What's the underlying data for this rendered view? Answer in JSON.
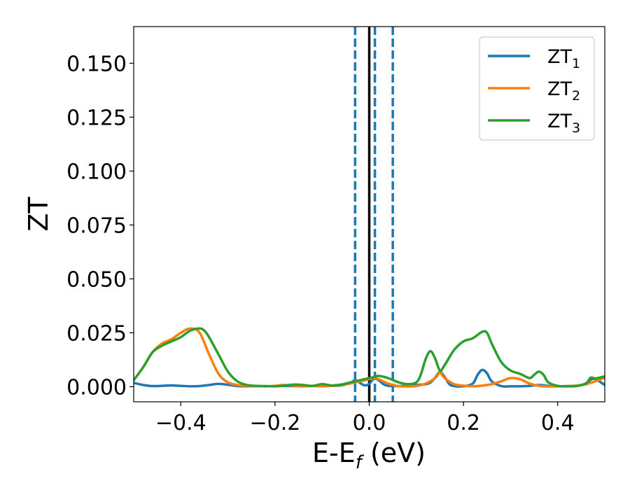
{
  "chart_data": {
    "type": "line",
    "xlabel_main": "E-E",
    "xlabel_sub": "f",
    "xlabel_tail": " (eV)",
    "ylabel": "ZT",
    "xlim": [
      -0.5,
      0.5
    ],
    "ylim": [
      -0.007,
      0.167
    ],
    "xticks": [
      -0.4,
      -0.2,
      0.0,
      0.2,
      0.4
    ],
    "xtick_labels": [
      "−0.4",
      "−0.2",
      "0.0",
      "0.2",
      "0.4"
    ],
    "yticks": [
      0.0,
      0.025,
      0.05,
      0.075,
      0.1,
      0.125,
      0.15
    ],
    "ytick_labels": [
      "0.000",
      "0.025",
      "0.050",
      "0.075",
      "0.100",
      "0.125",
      "0.150"
    ],
    "grid": false,
    "legend_position": "top-right",
    "fermi_line_x": 0.0,
    "fermi_line_color": "#000000",
    "dashed_lines_x": [
      -0.03,
      0.012,
      0.05
    ],
    "dashed_line_color": "#1f77b4",
    "series": [
      {
        "name": "ZT",
        "sub": "1",
        "color": "#1f77b4",
        "x": [
          -0.5,
          -0.48,
          -0.46,
          -0.44,
          -0.42,
          -0.4,
          -0.38,
          -0.36,
          -0.34,
          -0.32,
          -0.3,
          -0.28,
          -0.26,
          -0.24,
          -0.22,
          -0.2,
          -0.18,
          -0.16,
          -0.14,
          -0.12,
          -0.1,
          -0.08,
          -0.06,
          -0.04,
          -0.03,
          -0.02,
          -0.01,
          0.0,
          0.01,
          0.02,
          0.03,
          0.04,
          0.05,
          0.06,
          0.08,
          0.1,
          0.12,
          0.13,
          0.14,
          0.15,
          0.16,
          0.17,
          0.18,
          0.2,
          0.22,
          0.23,
          0.24,
          0.25,
          0.26,
          0.28,
          0.3,
          0.32,
          0.34,
          0.36,
          0.38,
          0.4,
          0.42,
          0.44,
          0.46,
          0.47,
          0.48,
          0.5
        ],
        "y": [
          0.0018,
          0.0008,
          0.0003,
          0.0004,
          0.0006,
          0.0004,
          0.0002,
          0.0003,
          0.0008,
          0.0013,
          0.0009,
          0.0003,
          0.0002,
          0.0003,
          0.0002,
          0.0003,
          0.0004,
          0.0003,
          0.0002,
          0.0004,
          0.0006,
          0.0005,
          0.0006,
          0.0018,
          0.003,
          0.0018,
          0.0006,
          0.0013,
          0.0038,
          0.003,
          0.0012,
          0.0004,
          0.0003,
          0.0003,
          0.0004,
          0.0008,
          0.0012,
          0.002,
          0.0042,
          0.0068,
          0.0045,
          0.0012,
          0.0003,
          0.0002,
          0.0015,
          0.0055,
          0.0078,
          0.0062,
          0.0025,
          0.0003,
          0.0002,
          0.0002,
          0.0004,
          0.0008,
          0.0004,
          0.0002,
          0.0003,
          0.0004,
          0.0015,
          0.0032,
          0.0035,
          0.0008
        ]
      },
      {
        "name": "ZT",
        "sub": "2",
        "color": "#ff7f0e",
        "x": [
          -0.5,
          -0.48,
          -0.46,
          -0.44,
          -0.42,
          -0.4,
          -0.38,
          -0.36,
          -0.34,
          -0.32,
          -0.3,
          -0.28,
          -0.26,
          -0.24,
          -0.22,
          -0.2,
          -0.18,
          -0.16,
          -0.14,
          -0.12,
          -0.1,
          -0.08,
          -0.06,
          -0.04,
          -0.02,
          0.0,
          0.01,
          0.02,
          0.04,
          0.06,
          0.08,
          0.1,
          0.12,
          0.14,
          0.15,
          0.16,
          0.18,
          0.2,
          0.22,
          0.24,
          0.26,
          0.28,
          0.3,
          0.32,
          0.34,
          0.36,
          0.38,
          0.4,
          0.42,
          0.44,
          0.46,
          0.48,
          0.5
        ],
        "y": [
          0.003,
          0.009,
          0.016,
          0.02,
          0.022,
          0.025,
          0.027,
          0.025,
          0.015,
          0.006,
          0.002,
          0.0008,
          0.0004,
          0.0003,
          0.0002,
          0.0004,
          0.0008,
          0.0005,
          0.0002,
          0.0003,
          0.0002,
          0.0004,
          0.0008,
          0.0015,
          0.0025,
          0.0035,
          0.004,
          0.0035,
          0.0015,
          0.0003,
          0.0001,
          0.0003,
          0.0015,
          0.004,
          0.0065,
          0.004,
          0.0012,
          0.0005,
          0.0002,
          0.0005,
          0.0012,
          0.0025,
          0.004,
          0.0035,
          0.0015,
          0.0004,
          0.0001,
          0.0002,
          0.0002,
          0.0005,
          0.0012,
          0.0025,
          0.0042
        ]
      },
      {
        "name": "ZT",
        "sub": "3",
        "color": "#2ca02c",
        "x": [
          -0.5,
          -0.48,
          -0.46,
          -0.44,
          -0.42,
          -0.4,
          -0.38,
          -0.36,
          -0.35,
          -0.34,
          -0.32,
          -0.3,
          -0.28,
          -0.26,
          -0.24,
          -0.22,
          -0.2,
          -0.18,
          -0.16,
          -0.14,
          -0.12,
          -0.1,
          -0.08,
          -0.06,
          -0.04,
          -0.02,
          0.0,
          0.01,
          0.02,
          0.04,
          0.06,
          0.08,
          0.1,
          0.11,
          0.12,
          0.13,
          0.14,
          0.15,
          0.16,
          0.18,
          0.2,
          0.22,
          0.24,
          0.25,
          0.26,
          0.28,
          0.3,
          0.32,
          0.34,
          0.35,
          0.36,
          0.37,
          0.38,
          0.4,
          0.42,
          0.44,
          0.46,
          0.47,
          0.48,
          0.5
        ],
        "y": [
          0.003,
          0.009,
          0.016,
          0.019,
          0.021,
          0.023,
          0.026,
          0.027,
          0.026,
          0.023,
          0.015,
          0.007,
          0.0025,
          0.0008,
          0.0004,
          0.0003,
          0.0002,
          0.0005,
          0.001,
          0.0008,
          0.0004,
          0.0012,
          0.0006,
          0.001,
          0.002,
          0.003,
          0.004,
          0.0045,
          0.005,
          0.004,
          0.0022,
          0.0012,
          0.002,
          0.006,
          0.013,
          0.0165,
          0.013,
          0.0075,
          0.01,
          0.017,
          0.021,
          0.0225,
          0.0255,
          0.025,
          0.02,
          0.0115,
          0.0075,
          0.006,
          0.004,
          0.0055,
          0.007,
          0.0055,
          0.002,
          0.0004,
          0.0002,
          0.0003,
          0.0015,
          0.0042,
          0.0038,
          0.0048
        ]
      }
    ]
  }
}
